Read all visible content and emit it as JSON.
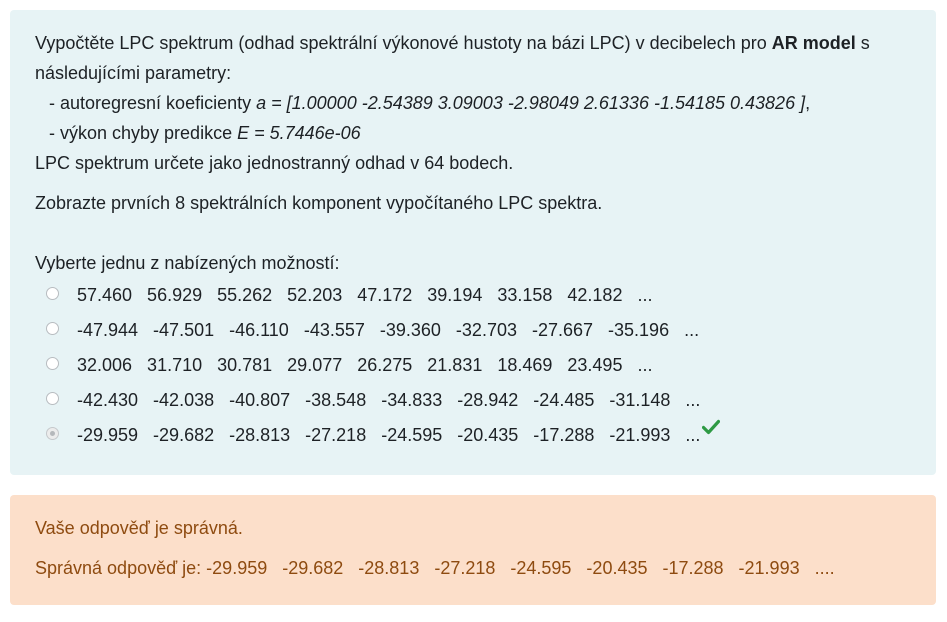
{
  "question": {
    "intro_part1": "Vypočtěte LPC spektrum (odhad spektrální výkonové hustoty na bázi LPC) v decibelech pro ",
    "intro_bold": "AR model",
    "intro_part2": " s následujícími parametry:",
    "coef_label": "- autoregresní koeficienty ",
    "coef_value": "a = [1.00000 -2.54389 3.09003 -2.98049 2.61336 -1.54185 0.43826 ]",
    "coef_suffix": ",",
    "error_label": "- výkon chyby predikce ",
    "error_value": "E = 5.7446e-06",
    "spectrum_line": "LPC spektrum určete jako jednostranný odhad v 64 bodech.",
    "display_line": "Zobrazte prvních 8 spektrálních komponent vypočítaného LPC spektra.",
    "prompt": "Vyberte jednu z nabízených možností:",
    "options": [
      {
        "label": "57.460   56.929   55.262   52.203   47.172   39.194   33.158   42.182   ...",
        "selected": false
      },
      {
        "label": "-47.944   -47.501   -46.110   -43.557   -39.360   -32.703   -27.667   -35.196   ...",
        "selected": false
      },
      {
        "label": "32.006   31.710   30.781   29.077   26.275   21.831   18.469   23.495   ...",
        "selected": false
      },
      {
        "label": "-42.430   -42.038   -40.807   -38.548   -34.833   -28.942   -24.485   -31.148   ...",
        "selected": false
      },
      {
        "label": "-29.959   -29.682   -28.813   -27.218   -24.595   -20.435   -17.288   -21.993   ...",
        "selected": true
      }
    ]
  },
  "feedback": {
    "status": "Vaše odpověď je správná.",
    "correct_answer": "Správná odpověď je: -29.959   -29.682   -28.813   -27.218   -24.595   -20.435   -17.288   -21.993   ...."
  },
  "colors": {
    "question_bg": "#e7f3f5",
    "feedback_bg": "#fcdfca",
    "feedback_text": "#8e4b10",
    "correct_check": "#2e9a44"
  },
  "icons": {
    "correct": "check-icon"
  }
}
